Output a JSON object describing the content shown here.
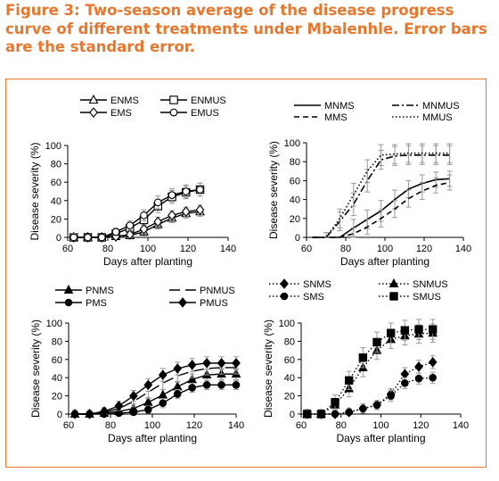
{
  "figure": {
    "title": "Figure 3: Two-season average of the disease progress curve of different treatments under Mbalenhle. Error bars are the standard error."
  },
  "chart_data": [
    {
      "type": "line",
      "xlabel": "Days after planting",
      "ylabel": "Disease severity (%)",
      "xlim": [
        60,
        140
      ],
      "ylim": [
        0,
        100
      ],
      "xticks": [
        60,
        80,
        100,
        120,
        140
      ],
      "yticks": [
        0,
        20,
        40,
        60,
        80,
        100
      ],
      "grid": false,
      "legend": "top",
      "x": [
        63,
        70,
        77,
        84,
        91,
        98,
        105,
        112,
        119,
        126
      ],
      "series": [
        {
          "name": "ENMS",
          "marker": "triangle",
          "dash": "solid",
          "values": [
            0,
            0,
            0,
            1,
            2,
            6,
            14,
            21,
            26,
            28
          ],
          "error": [
            4,
            3,
            3,
            3,
            4,
            4,
            5,
            5,
            5,
            5
          ]
        },
        {
          "name": "ENMUS",
          "marker": "square",
          "dash": "solid",
          "values": [
            0,
            0,
            0,
            4,
            10,
            19,
            34,
            44,
            49,
            52
          ],
          "error": [
            4,
            3,
            3,
            4,
            5,
            6,
            7,
            7,
            7,
            7
          ]
        },
        {
          "name": "EMS",
          "marker": "diamond",
          "dash": "solid",
          "values": [
            0,
            0,
            0,
            1,
            3,
            9,
            17,
            24,
            28,
            30
          ],
          "error": [
            4,
            3,
            3,
            3,
            4,
            5,
            5,
            5,
            5,
            5
          ]
        },
        {
          "name": "EMUS",
          "marker": "circle",
          "dash": "solid",
          "values": [
            0,
            0,
            0,
            6,
            13,
            24,
            38,
            46,
            50,
            52
          ],
          "error": [
            4,
            3,
            3,
            4,
            5,
            6,
            7,
            7,
            7,
            7
          ]
        }
      ]
    },
    {
      "type": "line",
      "xlabel": "Days after planting",
      "ylabel": "Disease severity (%)",
      "xlim": [
        60,
        140
      ],
      "ylim": [
        0,
        100
      ],
      "xticks": [
        60,
        80,
        100,
        120,
        140
      ],
      "yticks": [
        0,
        20,
        40,
        60,
        80,
        100
      ],
      "grid": false,
      "legend": "top",
      "x": [
        63,
        70,
        77,
        84,
        91,
        98,
        105,
        112,
        119,
        126,
        133
      ],
      "series": [
        {
          "name": "MNMS",
          "dash": "solid",
          "values": [
            0,
            0,
            0,
            10,
            19,
            28,
            40,
            51,
            57,
            61,
            62
          ],
          "error": [
            0,
            0,
            0,
            9,
            10,
            11,
            10,
            9,
            9,
            8,
            8
          ]
        },
        {
          "name": "MNMUS",
          "dash": "dashdot",
          "values": [
            0,
            0,
            17,
            35,
            60,
            82,
            86,
            87,
            87,
            87,
            87
          ],
          "error": [
            0,
            5,
            10,
            12,
            12,
            10,
            10,
            10,
            10,
            10,
            10
          ]
        },
        {
          "name": "MMS",
          "dash": "dash",
          "values": [
            0,
            0,
            0,
            4,
            11,
            20,
            30,
            41,
            49,
            55,
            58
          ],
          "error": [
            0,
            0,
            0,
            6,
            8,
            9,
            9,
            9,
            9,
            8,
            8
          ]
        },
        {
          "name": "MMUS",
          "dash": "dot",
          "values": [
            0,
            0,
            20,
            45,
            70,
            87,
            88,
            89,
            89,
            89,
            89
          ],
          "error": [
            0,
            5,
            10,
            12,
            12,
            11,
            10,
            10,
            10,
            10,
            10
          ]
        }
      ]
    },
    {
      "type": "line",
      "xlabel": "Days after planting",
      "ylabel": "Disease severity (%)",
      "xlim": [
        60,
        140
      ],
      "ylim": [
        0,
        100
      ],
      "xticks": [
        60,
        80,
        100,
        120,
        140
      ],
      "yticks": [
        0,
        20,
        40,
        60,
        80,
        100
      ],
      "grid": false,
      "legend": "top",
      "x": [
        63,
        70,
        77,
        84,
        91,
        98,
        105,
        112,
        119,
        126,
        133,
        140
      ],
      "series": [
        {
          "name": "PNMS",
          "marker": "triangle",
          "dash": "solid",
          "values": [
            0,
            0,
            1,
            3,
            6,
            13,
            21,
            30,
            38,
            43,
            44,
            44
          ],
          "error": [
            4,
            4,
            4,
            4,
            5,
            5,
            6,
            6,
            6,
            6,
            6,
            6
          ]
        },
        {
          "name": "PNMUS",
          "dash": "longdash",
          "values": [
            0,
            0,
            2,
            6,
            14,
            24,
            34,
            42,
            47,
            50,
            51,
            51
          ],
          "error": [
            4,
            4,
            4,
            5,
            6,
            7,
            7,
            7,
            7,
            7,
            7,
            7
          ]
        },
        {
          "name": "PMS",
          "marker": "circle",
          "dash": "solid",
          "values": [
            0,
            0,
            0,
            1,
            2,
            5,
            12,
            22,
            29,
            32,
            32,
            32
          ],
          "error": [
            3,
            3,
            3,
            3,
            3,
            4,
            5,
            5,
            5,
            5,
            5,
            5
          ]
        },
        {
          "name": "PMUS",
          "marker": "diamond",
          "dash": "solid",
          "values": [
            0,
            0,
            3,
            9,
            20,
            32,
            43,
            50,
            54,
            56,
            56,
            56
          ],
          "error": [
            4,
            4,
            4,
            5,
            6,
            7,
            7,
            7,
            7,
            7,
            7,
            7
          ]
        }
      ]
    },
    {
      "type": "line",
      "xlabel": "Days after planting",
      "ylabel": "Disease severity (%)",
      "xlim": [
        60,
        140
      ],
      "ylim": [
        0,
        100
      ],
      "xticks": [
        60,
        80,
        100,
        120,
        140
      ],
      "yticks": [
        0,
        20,
        40,
        60,
        80,
        100
      ],
      "grid": false,
      "legend": "top",
      "x": [
        63,
        70,
        77,
        84,
        91,
        98,
        105,
        112,
        119,
        126
      ],
      "series": [
        {
          "name": "SNMS",
          "marker": "diamond",
          "dash": "dot",
          "values": [
            0,
            0,
            0,
            2,
            6,
            10,
            22,
            44,
            52,
            57
          ],
          "error": [
            5,
            4,
            4,
            4,
            5,
            5,
            6,
            7,
            7,
            7
          ]
        },
        {
          "name": "SNMUS",
          "marker": "triangle",
          "dash": "dot",
          "values": [
            0,
            0,
            10,
            28,
            51,
            70,
            82,
            86,
            88,
            89
          ],
          "error": [
            5,
            5,
            7,
            9,
            10,
            10,
            10,
            10,
            10,
            10
          ]
        },
        {
          "name": "SMS",
          "marker": "circle",
          "dash": "dot",
          "values": [
            0,
            0,
            0,
            2,
            6,
            10,
            20,
            34,
            39,
            40
          ],
          "error": [
            5,
            4,
            4,
            4,
            5,
            5,
            6,
            6,
            6,
            6
          ]
        },
        {
          "name": "SMUS",
          "marker": "square",
          "dash": "dot",
          "values": [
            0,
            0,
            13,
            37,
            62,
            79,
            89,
            92,
            93,
            93
          ],
          "error": [
            5,
            5,
            8,
            10,
            11,
            11,
            11,
            11,
            11,
            11
          ]
        }
      ]
    }
  ]
}
